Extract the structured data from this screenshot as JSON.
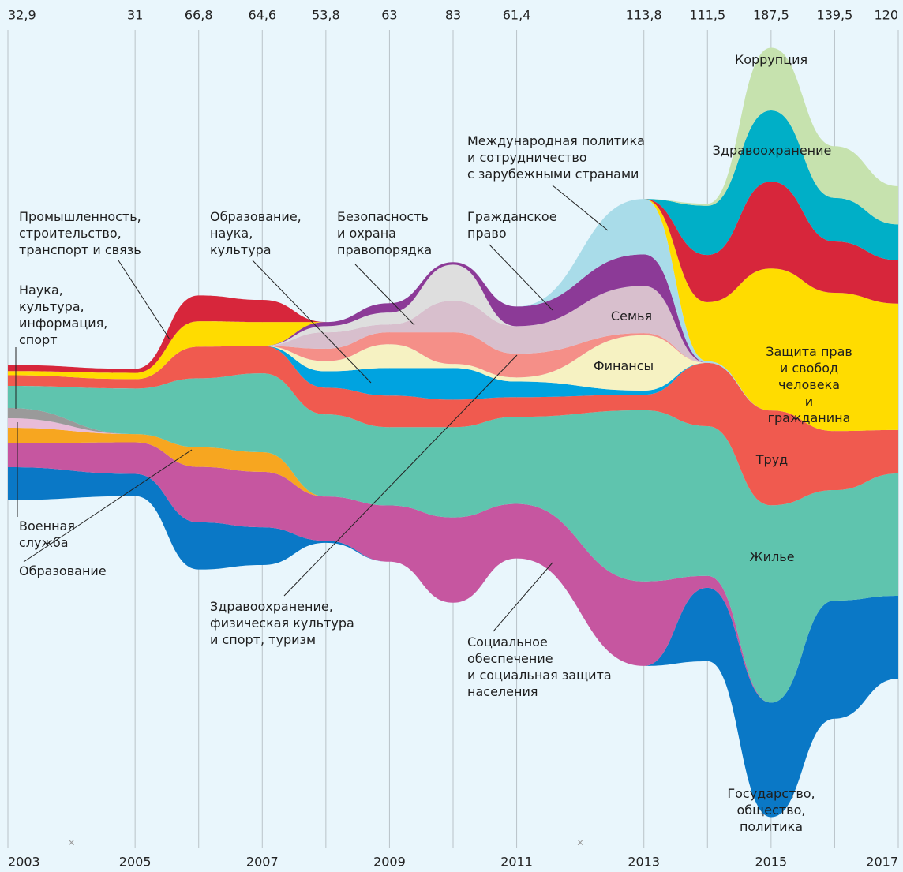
{
  "chart_data": {
    "type": "streamgraph",
    "x": [
      2003,
      2005,
      2006,
      2007,
      2008,
      2009,
      2010,
      2011,
      2013,
      2014,
      2015,
      2016,
      2017
    ],
    "xlim": [
      2003,
      2017
    ],
    "xticks": [
      2003,
      2005,
      2007,
      2009,
      2011,
      2013,
      2015,
      2017
    ],
    "totals": [
      {
        "value": 32.9,
        "label": "32,9"
      },
      31,
      {
        "value": 66.8,
        "label": "66,8"
      },
      {
        "value": 64.6,
        "label": "64,6"
      },
      {
        "value": 53.8,
        "label": "53,8"
      },
      63,
      83,
      {
        "value": 61.4,
        "label": "61,4"
      },
      {
        "value": 113.8,
        "label": "113,8"
      },
      {
        "value": 111.5,
        "label": "111,5"
      },
      {
        "value": 187.5,
        "label": "187,5"
      },
      {
        "value": 139.5,
        "label": "139,5"
      },
      120
    ],
    "gaps": [
      2004,
      2012
    ],
    "gap_symbol": "×",
    "series": [
      {
        "name": "Государство,\nобщество,\nполитика",
        "color": "#0a78c6",
        "values": [
          8,
          5.4,
          11.5,
          9.2,
          0.5,
          0,
          0,
          0,
          0,
          17.9,
          27.9,
          28.8,
          20.2
        ]
      },
      {
        "name": "Социальное\nобеспечение\nи социальная защита\nнаселения",
        "color": "#c656a0",
        "values": [
          5.8,
          7.7,
          13.5,
          13.5,
          10.8,
          13.7,
          20.8,
          13.3,
          20.6,
          2.9,
          0,
          0,
          0
        ]
      },
      {
        "name": "Образование",
        "color": "#f7a620",
        "values": [
          3.8,
          2,
          4.8,
          4.8,
          0,
          0,
          0,
          0,
          0,
          0,
          0,
          0,
          0
        ]
      },
      {
        "name": "Военная\nслужба",
        "color": "#e8bcd8",
        "values": [
          2.3,
          0,
          0,
          0,
          0,
          0,
          0,
          0,
          0,
          0,
          0,
          0,
          0
        ]
      },
      {
        "name": "Наука,\nкультура,\nинформация,\nспорт",
        "color": "#9a9a9a",
        "values": [
          2.5,
          0,
          0,
          0,
          0,
          0,
          0,
          0,
          0,
          0,
          0,
          0,
          0
        ]
      },
      {
        "name": "Жилье",
        "color": "#5fc4ae",
        "values": [
          5.4,
          11.1,
          16.8,
          19.2,
          20,
          19.1,
          22,
          21.2,
          41.7,
          36.5,
          48.1,
          26.9,
          29.8
        ]
      },
      {
        "name": "Труд",
        "color": "#f05a4f",
        "values": [
          2.6,
          2.3,
          7.7,
          6.7,
          6.5,
          7.7,
          6.7,
          4.8,
          3.8,
          15.4,
          23.1,
          14.4,
          10.6
        ]
      },
      {
        "name": "Образование,\nнаука,\nкультура",
        "color": "#00a3e0",
        "values": [
          0,
          0,
          0,
          0,
          4,
          6.7,
          7.7,
          3.8,
          1,
          0,
          0,
          0,
          0
        ]
      },
      {
        "name": "Финансы",
        "color": "#f6f2c2",
        "values": [
          0,
          0,
          0,
          0,
          2.5,
          5.8,
          1,
          1,
          13.5,
          0,
          0,
          0,
          0
        ]
      },
      {
        "name": "Здравоохранение,\nфизическая культура\nи спорт, туризм",
        "color": "#f58f88",
        "values": [
          0,
          0,
          0,
          0,
          3,
          2.9,
          7.7,
          5.8,
          0.5,
          0,
          0,
          0,
          0
        ]
      },
      {
        "name": "Семья",
        "color": "#d8bfcd",
        "values": [
          0,
          0,
          0,
          0,
          4,
          1.9,
          7.7,
          6.7,
          11.5,
          0,
          0,
          0,
          0
        ]
      },
      {
        "name": "Безопасность\nи охрана\nправопорядка",
        "color": "#dedede",
        "values": [
          0,
          0,
          0,
          0,
          1.5,
          2.9,
          8.8,
          0,
          0,
          0,
          0,
          0,
          0
        ]
      },
      {
        "name": "Гражданское\nправо",
        "color": "#8c3a97",
        "values": [
          0,
          0,
          0,
          0,
          1,
          2.3,
          0.6,
          4.8,
          7.7,
          0,
          0,
          0,
          0
        ]
      },
      {
        "name": "Международная политика\nи сотрудничество\nс зарубежными странами",
        "color": "#a9dce9",
        "values": [
          0,
          0,
          0,
          0,
          0,
          0,
          0,
          0,
          13.5,
          0.4,
          0,
          0,
          0
        ]
      },
      {
        "name": "Защита прав\nи свобод человека\nи гражданина",
        "color": "#ffdc00",
        "values": [
          1,
          1.5,
          6.2,
          5.8,
          0,
          0,
          0,
          0,
          0,
          14.4,
          34.6,
          33.7,
          30.8
        ]
      },
      {
        "name": "Промышленность,\nстроительство,\nтранспорт и связь",
        "color": "#d7263b",
        "values": [
          1.5,
          1,
          6.3,
          5.4,
          0,
          0,
          0,
          0,
          0,
          11.5,
          21.2,
          12.5,
          10.6
        ]
      },
      {
        "name": "Здравоохранение",
        "color": "#00afc7",
        "values": [
          0,
          0,
          0,
          0,
          0,
          0,
          0,
          0,
          0,
          12,
          17.3,
          10.6,
          8.7
        ]
      },
      {
        "name": "Коррупция",
        "color": "#c6e2ae",
        "values": [
          0,
          0,
          0,
          0,
          0,
          0,
          0,
          0,
          0,
          0.5,
          15.3,
          12.6,
          9.3
        ]
      }
    ]
  }
}
